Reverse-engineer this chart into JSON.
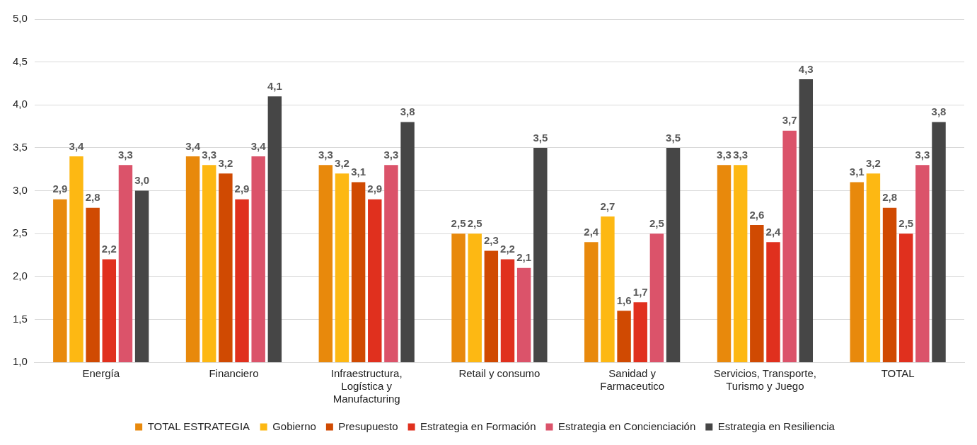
{
  "chart_data": {
    "type": "bar",
    "categories": [
      "Energía",
      "Financiero",
      "Infraestructura, Logística y Manufacturing",
      "Retail y consumo",
      "Sanidad y Farmaceutico",
      "Servicios, Transporte, Turismo y Juego",
      "TOTAL"
    ],
    "series": [
      {
        "name": "TOTAL ESTRATEGIA",
        "color": "#e8890c",
        "values": [
          2.9,
          3.4,
          3.3,
          2.5,
          2.4,
          3.3,
          3.1
        ],
        "value_labels": [
          "2,9",
          "3,4",
          "3,3",
          "2,5",
          "2,4",
          "3,3",
          "3,1"
        ]
      },
      {
        "name": "Gobierno",
        "color": "#fdb813",
        "values": [
          3.4,
          3.3,
          3.2,
          2.5,
          2.7,
          3.3,
          3.2
        ],
        "value_labels": [
          "3,4",
          "3,3",
          "3,2",
          "2,5",
          "2,7",
          "3,3",
          "3,2"
        ]
      },
      {
        "name": "Presupuesto",
        "color": "#d04a02",
        "values": [
          2.8,
          3.2,
          3.1,
          2.3,
          1.6,
          2.6,
          2.8
        ],
        "value_labels": [
          "2,8",
          "3,2",
          "3,1",
          "2,3",
          "1,6",
          "2,6",
          "2,8"
        ]
      },
      {
        "name": "Estrategia en Formación",
        "color": "#e0301e",
        "values": [
          2.2,
          2.9,
          2.9,
          2.2,
          1.7,
          2.4,
          2.5
        ],
        "value_labels": [
          "2,2",
          "2,9",
          "2,9",
          "2,2",
          "1,7",
          "2,4",
          "2,5"
        ]
      },
      {
        "name": "Estrategia en Concienciación",
        "color": "#db536a",
        "values": [
          3.3,
          3.4,
          3.3,
          2.1,
          2.5,
          3.7,
          3.3
        ],
        "value_labels": [
          "3,3",
          "3,4",
          "3,3",
          "2,1",
          "2,5",
          "3,7",
          "3,3"
        ]
      },
      {
        "name": "Estrategia en Resiliencia",
        "color": "#464646",
        "values": [
          3.0,
          4.1,
          3.8,
          3.5,
          3.5,
          4.3,
          3.8
        ],
        "value_labels": [
          "3,0",
          "4,1",
          "3,8",
          "3,5",
          "3,5",
          "4,3",
          "3,8"
        ]
      }
    ],
    "ylim": [
      1,
      5
    ],
    "yticks": [
      {
        "value": 1,
        "label": "1,0"
      },
      {
        "value": 1.5,
        "label": "1,5"
      },
      {
        "value": 2,
        "label": "2,0"
      },
      {
        "value": 2.5,
        "label": "2,5"
      },
      {
        "value": 3,
        "label": "3,0"
      },
      {
        "value": 3.5,
        "label": "3,5"
      },
      {
        "value": 4,
        "label": "4,0"
      },
      {
        "value": 4.5,
        "label": "4,5"
      },
      {
        "value": 5,
        "label": "5,0"
      }
    ],
    "grid": "y",
    "legend": "bottom"
  }
}
